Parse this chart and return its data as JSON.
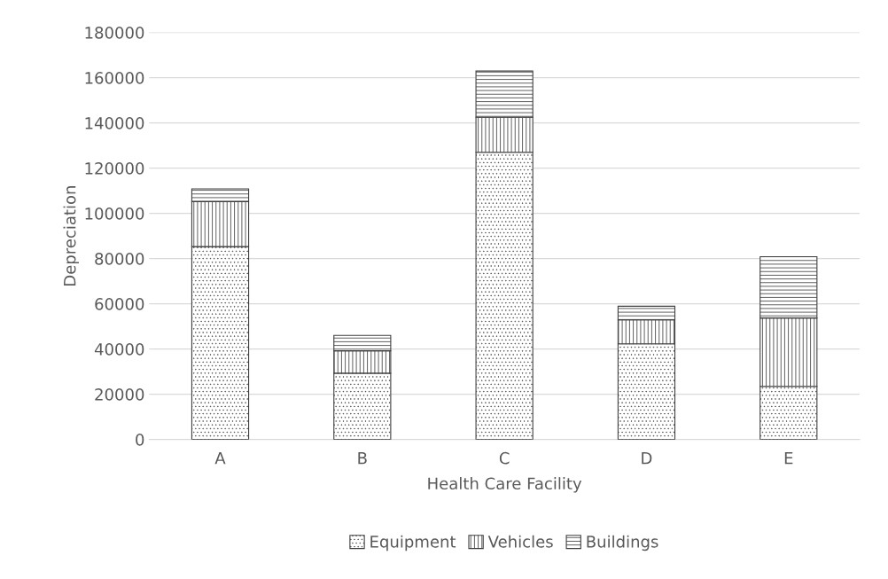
{
  "chart_data": {
    "type": "bar",
    "stacked": true,
    "xlabel": "Health Care Facility",
    "ylabel": "Depreciation",
    "categories": [
      "A",
      "B",
      "C",
      "D",
      "E"
    ],
    "series": [
      {
        "name": "Equipment",
        "color": "#404040",
        "values": [
          85300,
          29300,
          127000,
          42300,
          23500
        ]
      },
      {
        "name": "Vehicles",
        "color": "#404040",
        "values": [
          19900,
          9900,
          15500,
          10600,
          30200
        ]
      },
      {
        "name": "Buildings",
        "color": "#404040",
        "values": [
          5600,
          6800,
          20400,
          6000,
          27100
        ]
      }
    ],
    "ylim": [
      0,
      180000
    ],
    "yticks": [
      0,
      20000,
      40000,
      60000,
      80000,
      100000,
      120000,
      140000,
      160000,
      180000
    ],
    "grid": "y",
    "legend": "bottom"
  }
}
